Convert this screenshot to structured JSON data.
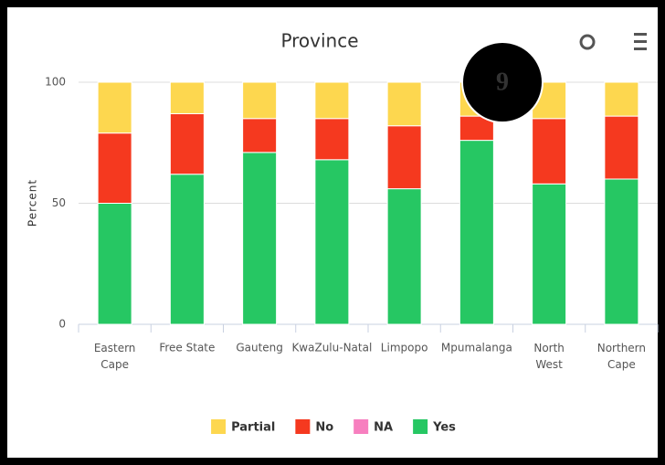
{
  "badge": "9",
  "chart_data": {
    "type": "stacked_bar",
    "title": "Province",
    "y_label": "Percent",
    "categories": [
      "Eastern Cape",
      "Free State",
      "Gauteng",
      "KwaZulu-Natal",
      "Limpopo",
      "Mpumalanga",
      "North West",
      "Northern Cape"
    ],
    "series": [
      {
        "name": "Partial",
        "color": "#fdd74f",
        "values": [
          21,
          13,
          15,
          15,
          18,
          14,
          15,
          14
        ]
      },
      {
        "name": "No",
        "color": "#f5391f",
        "values": [
          29,
          25,
          14,
          17,
          26,
          10,
          27,
          26
        ]
      },
      {
        "name": "NA",
        "color": "#f77fbf",
        "values": [
          0,
          0,
          0,
          0,
          0,
          0,
          0,
          0
        ]
      },
      {
        "name": "Yes",
        "color": "#26c763",
        "values": [
          50,
          62,
          71,
          68,
          56,
          76,
          58,
          60
        ]
      }
    ],
    "ylim": [
      0,
      100
    ],
    "yticks": [
      0,
      50,
      100
    ],
    "grid": true,
    "legend": "bottom"
  }
}
